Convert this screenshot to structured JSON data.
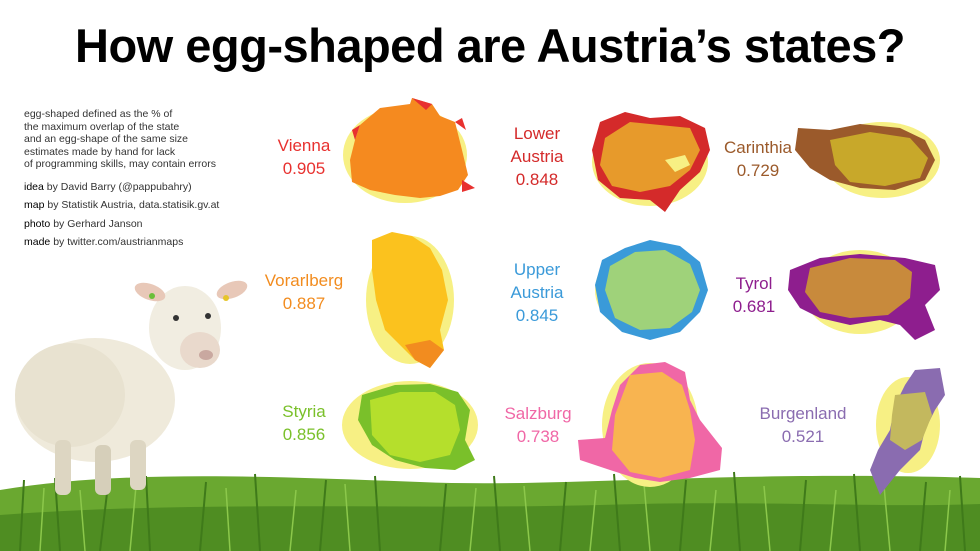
{
  "title": "How egg-shaped are Austria’s states?",
  "definition": [
    "egg-shaped defined as the % of",
    "the maximum overlap of the state",
    "and an egg-shape of the same size",
    "estimates made by hand for lack",
    "of programming skills, may contain errors"
  ],
  "credits": [
    {
      "role": "idea",
      "text": "by David Barry (@pappubahry)"
    },
    {
      "role": "map",
      "text": "by Statistik Austria, data.statisik.gv.at"
    },
    {
      "role": "photo",
      "text": "by Gerhard Janson"
    },
    {
      "role": "made",
      "text": "by twitter.com/austrianmaps"
    }
  ],
  "states": [
    {
      "name": [
        "Vienna"
      ],
      "score": "0.905",
      "color": "#e8312f",
      "fill": "#f58a1f"
    },
    {
      "name": [
        "Lower",
        "Austria"
      ],
      "score": "0.848",
      "color": "#d42a2a",
      "fill": "#e79a2b"
    },
    {
      "name": [
        "Carinthia"
      ],
      "score": "0.729",
      "color": "#9b5a2b",
      "fill": "#c8a82a"
    },
    {
      "name": [
        "Vorarlberg"
      ],
      "score": "0.887",
      "color": "#f28c1f",
      "fill": "#fbc21e"
    },
    {
      "name": [
        "Upper",
        "Austria"
      ],
      "score": "0.845",
      "color": "#3a9ad9",
      "fill": "#9fd27a"
    },
    {
      "name": [
        "Tyrol"
      ],
      "score": "0.681",
      "color": "#8e1e8e",
      "fill": "#c88a3c"
    },
    {
      "name": [
        "Styria"
      ],
      "score": "0.856",
      "color": "#7ac02a",
      "fill": "#b5df2c"
    },
    {
      "name": [
        "Salzburg"
      ],
      "score": "0.738",
      "color": "#f067a6",
      "fill": "#f8b450"
    },
    {
      "name": [
        "Burgenland"
      ],
      "score": "0.521",
      "color": "#8a6cb0",
      "fill": "#c3b85e"
    }
  ],
  "colors": {
    "egg": "#f7f084",
    "grass": "#5d9a2a",
    "sky": "#ffffff"
  }
}
